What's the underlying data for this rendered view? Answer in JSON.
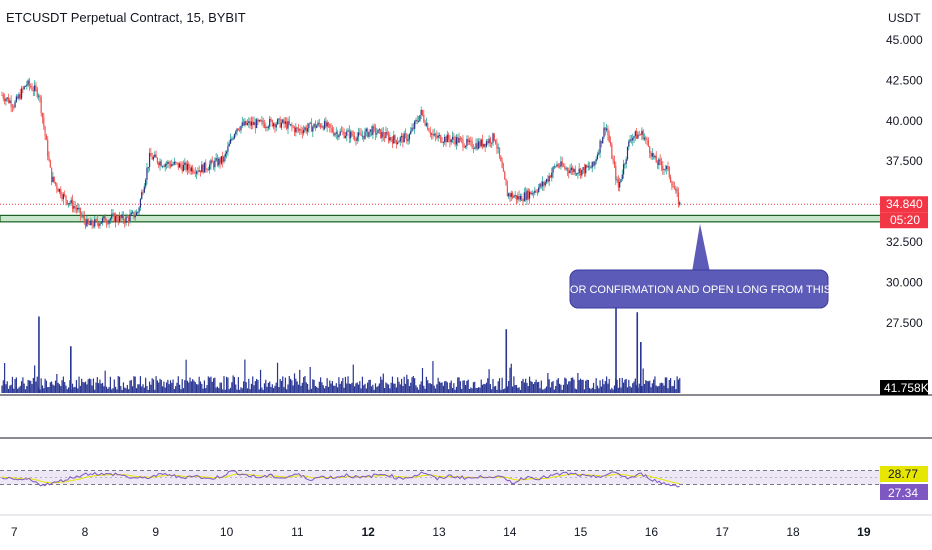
{
  "header": {
    "title": "ETCUSDT Perpetual Contract, 15, BYBIT"
  },
  "price_axis": {
    "currency": "USDT"
  },
  "colors": {
    "up": "#26a69a",
    "down": "#ef5350",
    "candle_body": "#2b2f8a",
    "zone_fill": "#c8e6c9",
    "zone_border": "#1b5e20",
    "price_badge": "#f23645",
    "volume_bar": "#283593",
    "rsi_line": "#7e57c2",
    "rsi_ma": "#e6e600",
    "rsi_band": "#ede7f6",
    "callout": "#5c5cb8"
  },
  "annotation": {
    "text": "WAIT FOR CONFIRMATION AND OPEN LONG FROM THIS ZONE"
  },
  "badges": {
    "last_price": "34.840",
    "countdown": "05:20",
    "volume": "41.758K",
    "rsi_ma": "28.77",
    "rsi": "27.34"
  },
  "chart_data": {
    "type": "line",
    "price_series_close": [
      41.6,
      41.0,
      42.3,
      41.7,
      36.5,
      35.3,
      34.6,
      33.5,
      33.8,
      34.0,
      33.9,
      34.3,
      37.8,
      37.4,
      37.3,
      37.1,
      37.0,
      37.3,
      37.6,
      39.6,
      39.8,
      39.8,
      39.9,
      39.8,
      39.4,
      39.6,
      39.8,
      39.3,
      39.2,
      39.0,
      39.4,
      39.1,
      38.8,
      39.0,
      40.5,
      39.0,
      38.9,
      38.8,
      38.5,
      38.6,
      39.0,
      35.5,
      35.2,
      35.6,
      36.1,
      37.3,
      37.0,
      36.9,
      37.2,
      39.8,
      35.8,
      39.0,
      39.2,
      37.5,
      37.0,
      34.8
    ],
    "price_ylim": [
      31.0,
      45.0
    ],
    "price_yticks": [
      "45.000",
      "42.500",
      "40.000",
      "37.500",
      "35.000",
      "32.500",
      "30.000",
      "27.500"
    ],
    "price_ytick_values": [
      45.0,
      42.5,
      40.0,
      37.5,
      35.0,
      32.5,
      30.0,
      27.5
    ],
    "support_zone": [
      33.75,
      34.15
    ],
    "last_price": 34.84,
    "x_tick_labels": [
      "7",
      "8",
      "9",
      "10",
      "11",
      "12",
      "13",
      "14",
      "15",
      "16",
      "17",
      "18",
      "19"
    ],
    "x_tick_days": [
      7,
      8,
      9,
      10,
      11,
      12,
      13,
      14,
      15,
      16,
      17,
      18,
      19
    ],
    "x_range_days": [
      6.8,
      19.2
    ],
    "last_bar_day": 16.4,
    "volume_spikes": [
      {
        "day": 7.35,
        "value": 0.9
      },
      {
        "day": 7.8,
        "value": 0.55
      },
      {
        "day": 13.95,
        "value": 0.75
      },
      {
        "day": 15.5,
        "value": 1.0
      },
      {
        "day": 15.8,
        "value": 0.95
      },
      {
        "day": 15.85,
        "value": 0.6
      }
    ],
    "rsi_levels": [
      70,
      30
    ],
    "rsi_series": [
      52,
      40,
      45,
      30,
      33,
      45,
      55,
      63,
      58,
      60,
      50,
      47,
      55,
      60,
      48,
      57,
      45,
      52,
      68,
      58,
      50,
      55,
      48,
      60,
      45,
      52,
      50,
      58,
      48,
      55,
      60,
      47,
      52,
      65,
      45,
      55,
      50,
      48,
      55,
      50,
      35,
      52,
      48,
      55,
      62,
      58,
      50,
      55,
      64,
      47,
      60,
      42,
      30,
      27
    ],
    "rsi_last": 27.34,
    "rsi_ma_last": 28.77
  }
}
